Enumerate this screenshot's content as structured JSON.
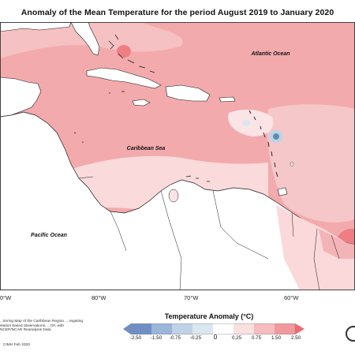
{
  "title": "Anomaly of the Mean Temperature for the period August 2019 to January 2020",
  "map": {
    "labels": {
      "atlantic": "Atlantic Ocean",
      "caribbean": "Caribbean Sea",
      "pacific": "Pacific Ocean"
    },
    "longitude_ticks": [
      "80°W",
      "70°W",
      "60°W"
    ],
    "longitude_tick_partial": "0°W",
    "colors": {
      "ocean_base": "#f3aaad",
      "light_pink": "#fadadb",
      "medium_pink": "#f4b3b6",
      "strong_pink": "#ee7e84",
      "land": "#ffffff",
      "coast": "#1a1a1a",
      "cold_center": "#5a8fb0"
    }
  },
  "legend": {
    "title": "Temperature Anomaly (°C)",
    "ticks": [
      "-2.50",
      "-1.50",
      "-0.75",
      "-0.25",
      "0",
      "0.25",
      "0.75",
      "1.50",
      "2.50"
    ],
    "colors": [
      "#6f8fc4",
      "#9ab6d8",
      "#bfd3e6",
      "#dbe7ef",
      "#ffffff",
      "#fbe0e1",
      "#f6bcbe",
      "#f1999c",
      "#ec6b72"
    ]
  },
  "credit": {
    "text": "...itoring Map of the Caribbean Region. ...regating station based observations, ...OF, with NCEP/NCAR Reanalysis Data",
    "date": "CIMH Feb 2020"
  }
}
